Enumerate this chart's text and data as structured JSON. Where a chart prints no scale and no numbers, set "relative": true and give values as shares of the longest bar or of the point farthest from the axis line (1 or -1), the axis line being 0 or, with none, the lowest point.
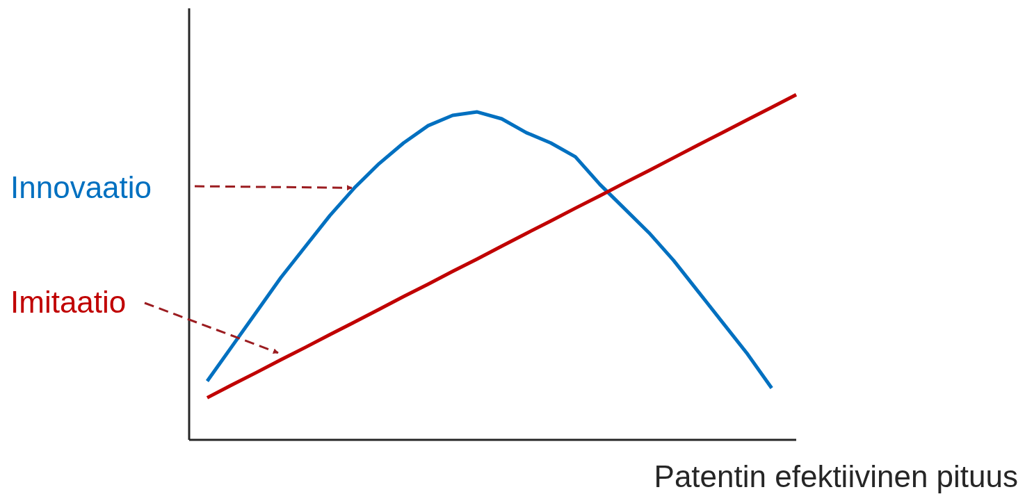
{
  "chart_data": {
    "type": "line",
    "relative": true,
    "xlabel": "Patentin efektiivinen pituus",
    "categories": [
      null,
      null,
      null,
      null,
      null,
      null,
      null,
      null,
      null,
      null,
      null,
      null,
      null,
      null,
      null,
      null,
      null,
      null,
      null,
      null,
      null,
      null,
      null,
      null,
      null
    ],
    "series": [
      {
        "name": "Innovaatio",
        "color": "#0070c0",
        "values": [
          0.17,
          0.27,
          0.37,
          0.47,
          0.56,
          0.65,
          0.73,
          0.8,
          0.86,
          0.91,
          0.94,
          0.95,
          0.93,
          0.89,
          0.86,
          0.82,
          0.74,
          0.67,
          0.6,
          0.52,
          0.43,
          0.34,
          0.25,
          0.15,
          null
        ]
      },
      {
        "name": "Imitaatio",
        "color": "#c00000",
        "values": [
          0.122,
          0.159,
          0.195,
          0.232,
          0.268,
          0.305,
          0.341,
          0.378,
          0.415,
          0.451,
          0.488,
          0.524,
          0.561,
          0.598,
          0.634,
          0.671,
          0.707,
          0.744,
          0.78,
          0.817,
          0.854,
          0.89,
          0.927,
          0.963,
          1.0
        ]
      }
    ],
    "legend": false,
    "marker": "none",
    "line_style": "solid"
  }
}
